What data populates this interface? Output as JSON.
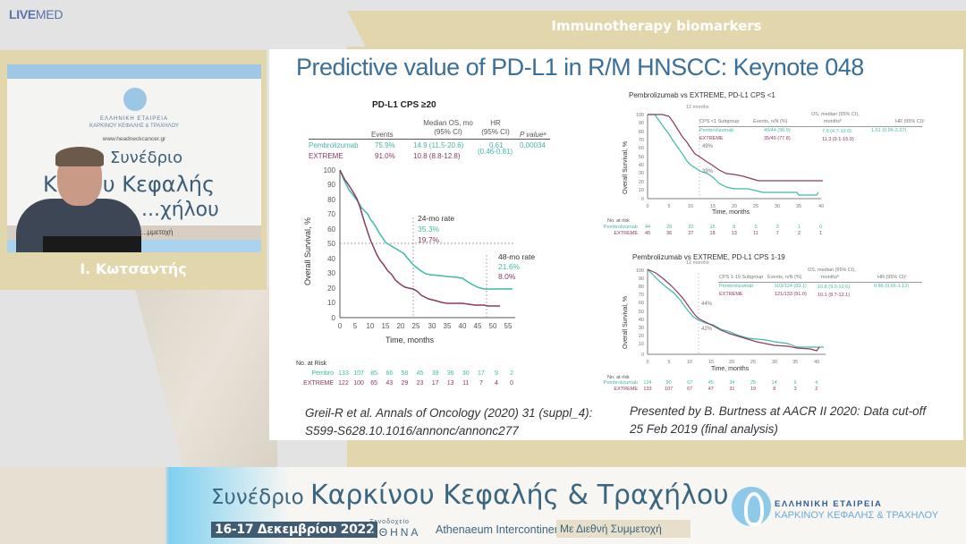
{
  "brand": {
    "logo_bold": "LIVE",
    "logo_light": "MED"
  },
  "banner": {
    "title": "Immunotherapy biomarkers"
  },
  "speaker": {
    "name": "Ι. Κωτσαντής",
    "video": {
      "org_line1": "ΕΛΛΗΝΙΚΗ ΕΤΑΙΡΕΙΑ",
      "org_line2": "ΚΑΡΚΙΝΟΥ ΚΕΦΑΛΗΣ & ΤΡΑΧΗΛΟΥ",
      "url": "www.headneckcancer.gr",
      "bg_text_1": "Συνέδριο",
      "bg_text_2": "Κ...νου Κεφαλής",
      "bg_text_3": "...χήλου",
      "bg_band": "...μμετοχή"
    }
  },
  "slide": {
    "title": "Predictive value of PD-L1 in R/M HNSCC: Keynote 048",
    "left_panel": {
      "title": "PD-L1 CPS ≥20",
      "table": {
        "headers": [
          "",
          "Events",
          "Median OS, mo (95% CI)",
          "HR (95% CI)",
          "P valueᵃ"
        ],
        "header_median_1": "Median OS, mo",
        "header_median_2": "(95% CI)",
        "header_hr_1": "HR",
        "header_hr_2": "(95% CI)",
        "rows": [
          {
            "arm": "Pembrolizumab",
            "events": "75.9%",
            "median": "14.9 (11.5-20.6)",
            "hr": "0.61",
            "p": "0.00034"
          },
          {
            "arm": "EXTREME",
            "events": "91.0%",
            "median": "10.8 (8.8-12.8)",
            "hr": "(0.46-0.81)",
            "p": ""
          }
        ]
      },
      "annot_24": {
        "label": "24-mo rate",
        "pembro": "35.3%",
        "extreme": "19.7%"
      },
      "annot_48": {
        "label": "48-mo rate",
        "pembro": "21.6%",
        "extreme": "8.0%"
      },
      "y_label": "Overall Survival, %",
      "x_label": "Time, months",
      "risk_label": "No. at Risk",
      "risk": {
        "pembro_label": "Pembro",
        "pembro": [
          "133",
          "107",
          "85",
          "66",
          "58",
          "45",
          "39",
          "36",
          "30",
          "17",
          "9",
          "2"
        ],
        "extreme_label": "EXTREME",
        "extreme": [
          "122",
          "100",
          "65",
          "43",
          "29",
          "23",
          "17",
          "13",
          "11",
          "7",
          "4",
          "0"
        ]
      }
    },
    "right_top": {
      "title": "Pembrolizumab vs EXTREME, PD-L1 CPS <1",
      "marker": "12 months",
      "pct_upper": "49%",
      "pct_lower": "39%",
      "table": {
        "h_subgroup": "CPS <1 Subgroup",
        "h_events": "Events, n/N (%)",
        "h_os_1": "OS, median (95% CI),",
        "h_os_2": "monthsᵇ",
        "h_hr": "HR (95% CI)ᶜ",
        "rows": [
          {
            "arm": "Pembrolizumab",
            "events": "40/44 (90.9)",
            "os": "7.9 (4.7-13.6)",
            "hr": "1.51 (0.96-2.37)"
          },
          {
            "arm": "EXTREME",
            "events": "35/45 (77.8)",
            "os": "11.3 (9.1-15.9)",
            "hr": ""
          }
        ]
      },
      "y_label": "Overall Survival, %",
      "x_label": "Time, months",
      "risk_label": "No. at risk",
      "risk": {
        "pembro_label": "Pembrolizumab",
        "pembro": [
          "44",
          "29",
          "20",
          "15",
          "8",
          "5",
          "3",
          "1",
          "0"
        ],
        "extreme_label": "EXTREME",
        "extreme": [
          "45",
          "36",
          "27",
          "18",
          "13",
          "11",
          "7",
          "2",
          "1"
        ]
      }
    },
    "right_bottom": {
      "title": "Pembrolizumab vs EXTREME, PD-L1 CPS 1-19",
      "marker": "12 months",
      "pct_upper": "44%",
      "pct_lower": "42%",
      "table": {
        "h_subgroup": "CPS 1-19 Subgroup",
        "h_events": "Events, n/N (%)",
        "h_os_1": "OS, median (95% CI),",
        "h_os_2": "monthsᵇ",
        "h_hr": "HR (95% CI)ᶜ",
        "rows": [
          {
            "arm": "Pembrolizumab",
            "events": "103/124 (83.1)",
            "os": "10.8 (9.0-12.6)",
            "hr": "0.86 (0.66-1.12)"
          },
          {
            "arm": "EXTREME",
            "events": "121/133 (91.0)",
            "os": "10.1 (8.7-12.1)",
            "hr": ""
          }
        ]
      },
      "y_label": "Overall Survival, %",
      "x_label": "Time, months",
      "risk_label": "No. at risk",
      "risk": {
        "pembro_label": "Pembrolizumab",
        "pembro": [
          "124",
          "90",
          "67",
          "45",
          "34",
          "25",
          "14",
          "6",
          "4"
        ],
        "extreme_label": "EXTREME",
        "extreme": [
          "133",
          "107",
          "67",
          "47",
          "31",
          "19",
          "8",
          "3",
          "2"
        ]
      }
    },
    "citation_left_1": "Greil-R et al. Annals of Oncology (2020) 31 (suppl_4):",
    "citation_left_2": "S599-S628.10.1016/annonc/annonc277",
    "citation_right_1": "Presented by B. Burtness at AACR II 2020: Data cut-off",
    "citation_right_2": "25 Feb 2019 (final analysis)"
  },
  "footer": {
    "title_small": "Συνέδριο ",
    "title_big": "Καρκίνου Κεφαλής & Τραχήλου",
    "date": "16-17 Δεκεμβρίου 2022",
    "hotel_small": "Ξενοδοχείο",
    "hotel_city": "ΑΘΗΝΑ",
    "venue": "Athenaeum Intercontinental",
    "international": "Με Διεθνή Συμμετοχή",
    "org_line1": "ΕΛΛΗΝΙΚΗ ΕΤΑΙΡΕΙΑ",
    "org_line2": "ΚΑΡΚΙΝΟΥ ΚΕΦΑΛΗΣ & ΤΡΑΧΗΛΟΥ"
  },
  "colors": {
    "pembro": "#3dbaa8",
    "extreme": "#8b3a62",
    "title_blue": "#3a6f9a",
    "banner_gold": "#e2d6ad"
  },
  "chart_data": [
    {
      "type": "line",
      "title": "PD-L1 CPS ≥20",
      "xlabel": "Time, months",
      "ylabel": "Overall Survival, %",
      "xlim": [
        0,
        57
      ],
      "ylim": [
        0,
        100
      ],
      "x_ticks": [
        0,
        5,
        10,
        15,
        20,
        25,
        30,
        35,
        40,
        45,
        50,
        55
      ],
      "y_ticks": [
        0,
        10,
        20,
        30,
        40,
        50,
        60,
        70,
        80,
        90,
        100
      ],
      "x": [
        0,
        3,
        6,
        8,
        10,
        12,
        15,
        18,
        20,
        24,
        28,
        32,
        36,
        40,
        44,
        48,
        53,
        57
      ],
      "series": [
        {
          "name": "Pembrolizumab",
          "values": [
            100,
            86,
            75,
            67,
            64,
            56,
            49,
            45,
            42,
            35.3,
            31,
            29,
            29,
            27,
            23,
            21.6,
            21.6,
            21.6
          ]
        },
        {
          "name": "EXTREME",
          "values": [
            100,
            88,
            78,
            60,
            50,
            42,
            34,
            27,
            22,
            19.7,
            15,
            12,
            11,
            11,
            10,
            8.0,
            8.0,
            null
          ]
        }
      ],
      "annotations": [
        "24-mo rate: 35.3% / 19.7%",
        "48-mo rate: 21.6% / 8.0%"
      ],
      "reference_lines": {
        "y": 50,
        "x": [
          24,
          48
        ]
      }
    },
    {
      "type": "line",
      "title": "Pembrolizumab vs EXTREME, PD-L1 CPS <1",
      "xlabel": "Time, months",
      "ylabel": "Overall Survival, %",
      "xlim": [
        0,
        42
      ],
      "ylim": [
        0,
        100
      ],
      "x": [
        0,
        5,
        10,
        12,
        15,
        20,
        25,
        30,
        35,
        39
      ],
      "series": [
        {
          "name": "Pembrolizumab",
          "values": [
            100,
            72,
            45,
            39,
            30,
            17,
            12,
            11,
            6,
            6
          ]
        },
        {
          "name": "EXTREME",
          "values": [
            100,
            98,
            65,
            49,
            37,
            29,
            24,
            22,
            22,
            22
          ]
        }
      ],
      "reference_lines": {
        "x": [
          12
        ]
      }
    },
    {
      "type": "line",
      "title": "Pembrolizumab vs EXTREME, PD-L1 CPS 1-19",
      "xlabel": "Time, months",
      "ylabel": "Overall Survival, %",
      "xlim": [
        0,
        42
      ],
      "ylim": [
        0,
        100
      ],
      "x": [
        0,
        5,
        10,
        12,
        15,
        20,
        25,
        30,
        35,
        40
      ],
      "series": [
        {
          "name": "Pembrolizumab",
          "values": [
            100,
            74,
            50,
            42,
            35,
            27,
            21,
            18,
            13,
            11
          ]
        },
        {
          "name": "EXTREME",
          "values": [
            100,
            78,
            52,
            44,
            33,
            23,
            15,
            10,
            8,
            5
          ]
        }
      ],
      "reference_lines": {
        "x": [
          12
        ]
      }
    }
  ]
}
